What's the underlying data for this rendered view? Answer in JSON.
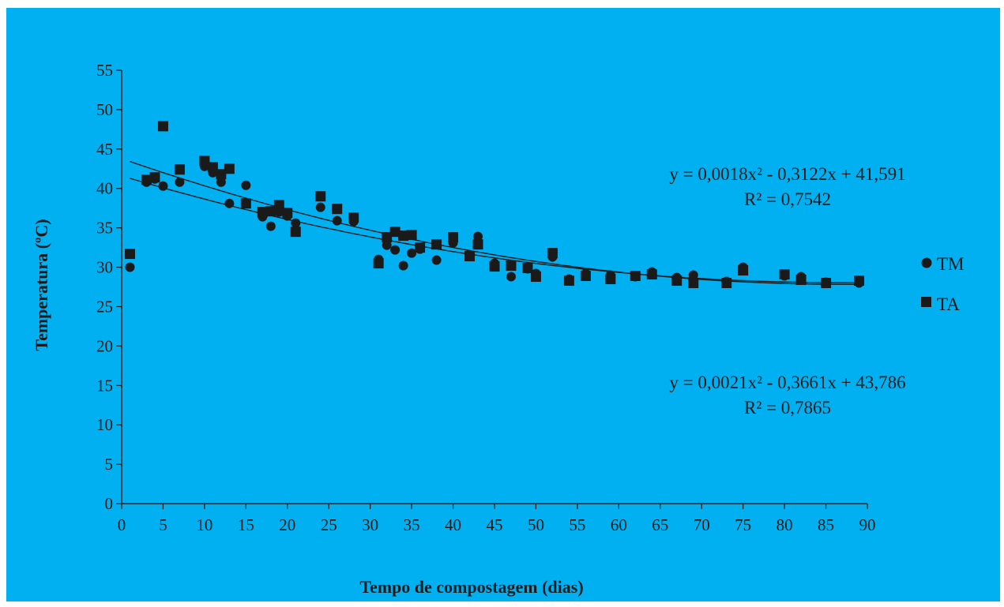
{
  "chart_data": {
    "type": "scatter",
    "xlabel": "Tempo de compostagem (dias)",
    "ylabel": "Temperatura (ºC)",
    "xlim": [
      0,
      90
    ],
    "ylim": [
      0,
      55
    ],
    "xticks": [
      0,
      5,
      10,
      15,
      20,
      25,
      30,
      35,
      40,
      45,
      50,
      55,
      60,
      65,
      70,
      75,
      80,
      85,
      90
    ],
    "yticks": [
      0,
      5,
      10,
      15,
      20,
      25,
      30,
      35,
      40,
      45,
      50,
      55
    ],
    "grid": false,
    "legend_position": "right",
    "background_color": "#00b0f0",
    "marker_color": "#1a1a1a",
    "series": [
      {
        "name": "TM",
        "marker": "circle",
        "trendline": [
          41.591,
          -0.3122,
          0.0018
        ],
        "points": [
          [
            1,
            30
          ],
          [
            3,
            40.8
          ],
          [
            4,
            41.2
          ],
          [
            5,
            40.3
          ],
          [
            7,
            40.8
          ],
          [
            10,
            42.8
          ],
          [
            11,
            42
          ],
          [
            12,
            40.8
          ],
          [
            13,
            38.1
          ],
          [
            15,
            40.4
          ],
          [
            17,
            36.4
          ],
          [
            18,
            35.2
          ],
          [
            19,
            37
          ],
          [
            20,
            36.5
          ],
          [
            21,
            35.6
          ],
          [
            24,
            37.6
          ],
          [
            26,
            35.9
          ],
          [
            28,
            35.8
          ],
          [
            31,
            31
          ],
          [
            32,
            32.8
          ],
          [
            33,
            32.2
          ],
          [
            34,
            30.2
          ],
          [
            35,
            31.8
          ],
          [
            36,
            32.3
          ],
          [
            38,
            30.9
          ],
          [
            40,
            33.1
          ],
          [
            42,
            31.6
          ],
          [
            43,
            33.9
          ],
          [
            45,
            30.5
          ],
          [
            47,
            28.8
          ],
          [
            49,
            29.8
          ],
          [
            50,
            29.2
          ],
          [
            52,
            31.3
          ],
          [
            54,
            28.5
          ],
          [
            56,
            29.2
          ],
          [
            59,
            29
          ],
          [
            62,
            28.8
          ],
          [
            64,
            29.4
          ],
          [
            67,
            28.7
          ],
          [
            69,
            29
          ],
          [
            73,
            28.2
          ],
          [
            75,
            30
          ],
          [
            80,
            28.9
          ],
          [
            82,
            28.8
          ],
          [
            85,
            28.1
          ],
          [
            89,
            28
          ]
        ]
      },
      {
        "name": "TA",
        "marker": "square",
        "trendline": [
          43.786,
          -0.3661,
          0.0021
        ],
        "points": [
          [
            1,
            31.7
          ],
          [
            3,
            41.1
          ],
          [
            4,
            41.4
          ],
          [
            5,
            47.9
          ],
          [
            7,
            42.4
          ],
          [
            10,
            43.5
          ],
          [
            11,
            42.7
          ],
          [
            12,
            41.8
          ],
          [
            13,
            42.5
          ],
          [
            15,
            38.1
          ],
          [
            17,
            37
          ],
          [
            18,
            37.1
          ],
          [
            19,
            37.9
          ],
          [
            20,
            36.9
          ],
          [
            21,
            34.5
          ],
          [
            24,
            39
          ],
          [
            26,
            37.4
          ],
          [
            28,
            36.3
          ],
          [
            31,
            30.5
          ],
          [
            32,
            33.8
          ],
          [
            33,
            34.5
          ],
          [
            34,
            34
          ],
          [
            35,
            34.1
          ],
          [
            36,
            32.5
          ],
          [
            38,
            32.9
          ],
          [
            40,
            33.8
          ],
          [
            42,
            31.4
          ],
          [
            43,
            32.9
          ],
          [
            45,
            30.1
          ],
          [
            47,
            30.2
          ],
          [
            49,
            29.9
          ],
          [
            50,
            28.8
          ],
          [
            52,
            31.8
          ],
          [
            54,
            28.3
          ],
          [
            56,
            28.9
          ],
          [
            59,
            28.5
          ],
          [
            62,
            28.9
          ],
          [
            64,
            29.1
          ],
          [
            67,
            28.3
          ],
          [
            69,
            28
          ],
          [
            73,
            28
          ],
          [
            75,
            29.6
          ],
          [
            80,
            29.1
          ],
          [
            82,
            28.4
          ],
          [
            85,
            28
          ],
          [
            89,
            28.3
          ]
        ]
      }
    ],
    "annotations": [
      {
        "line1": "y = 0,0018x² - 0,3122x + 41,591",
        "line2": "R² = 0,7542"
      },
      {
        "line1": "y = 0,0021x² - 0,3661x + 43,786",
        "line2": "R² = 0,7865"
      }
    ]
  }
}
